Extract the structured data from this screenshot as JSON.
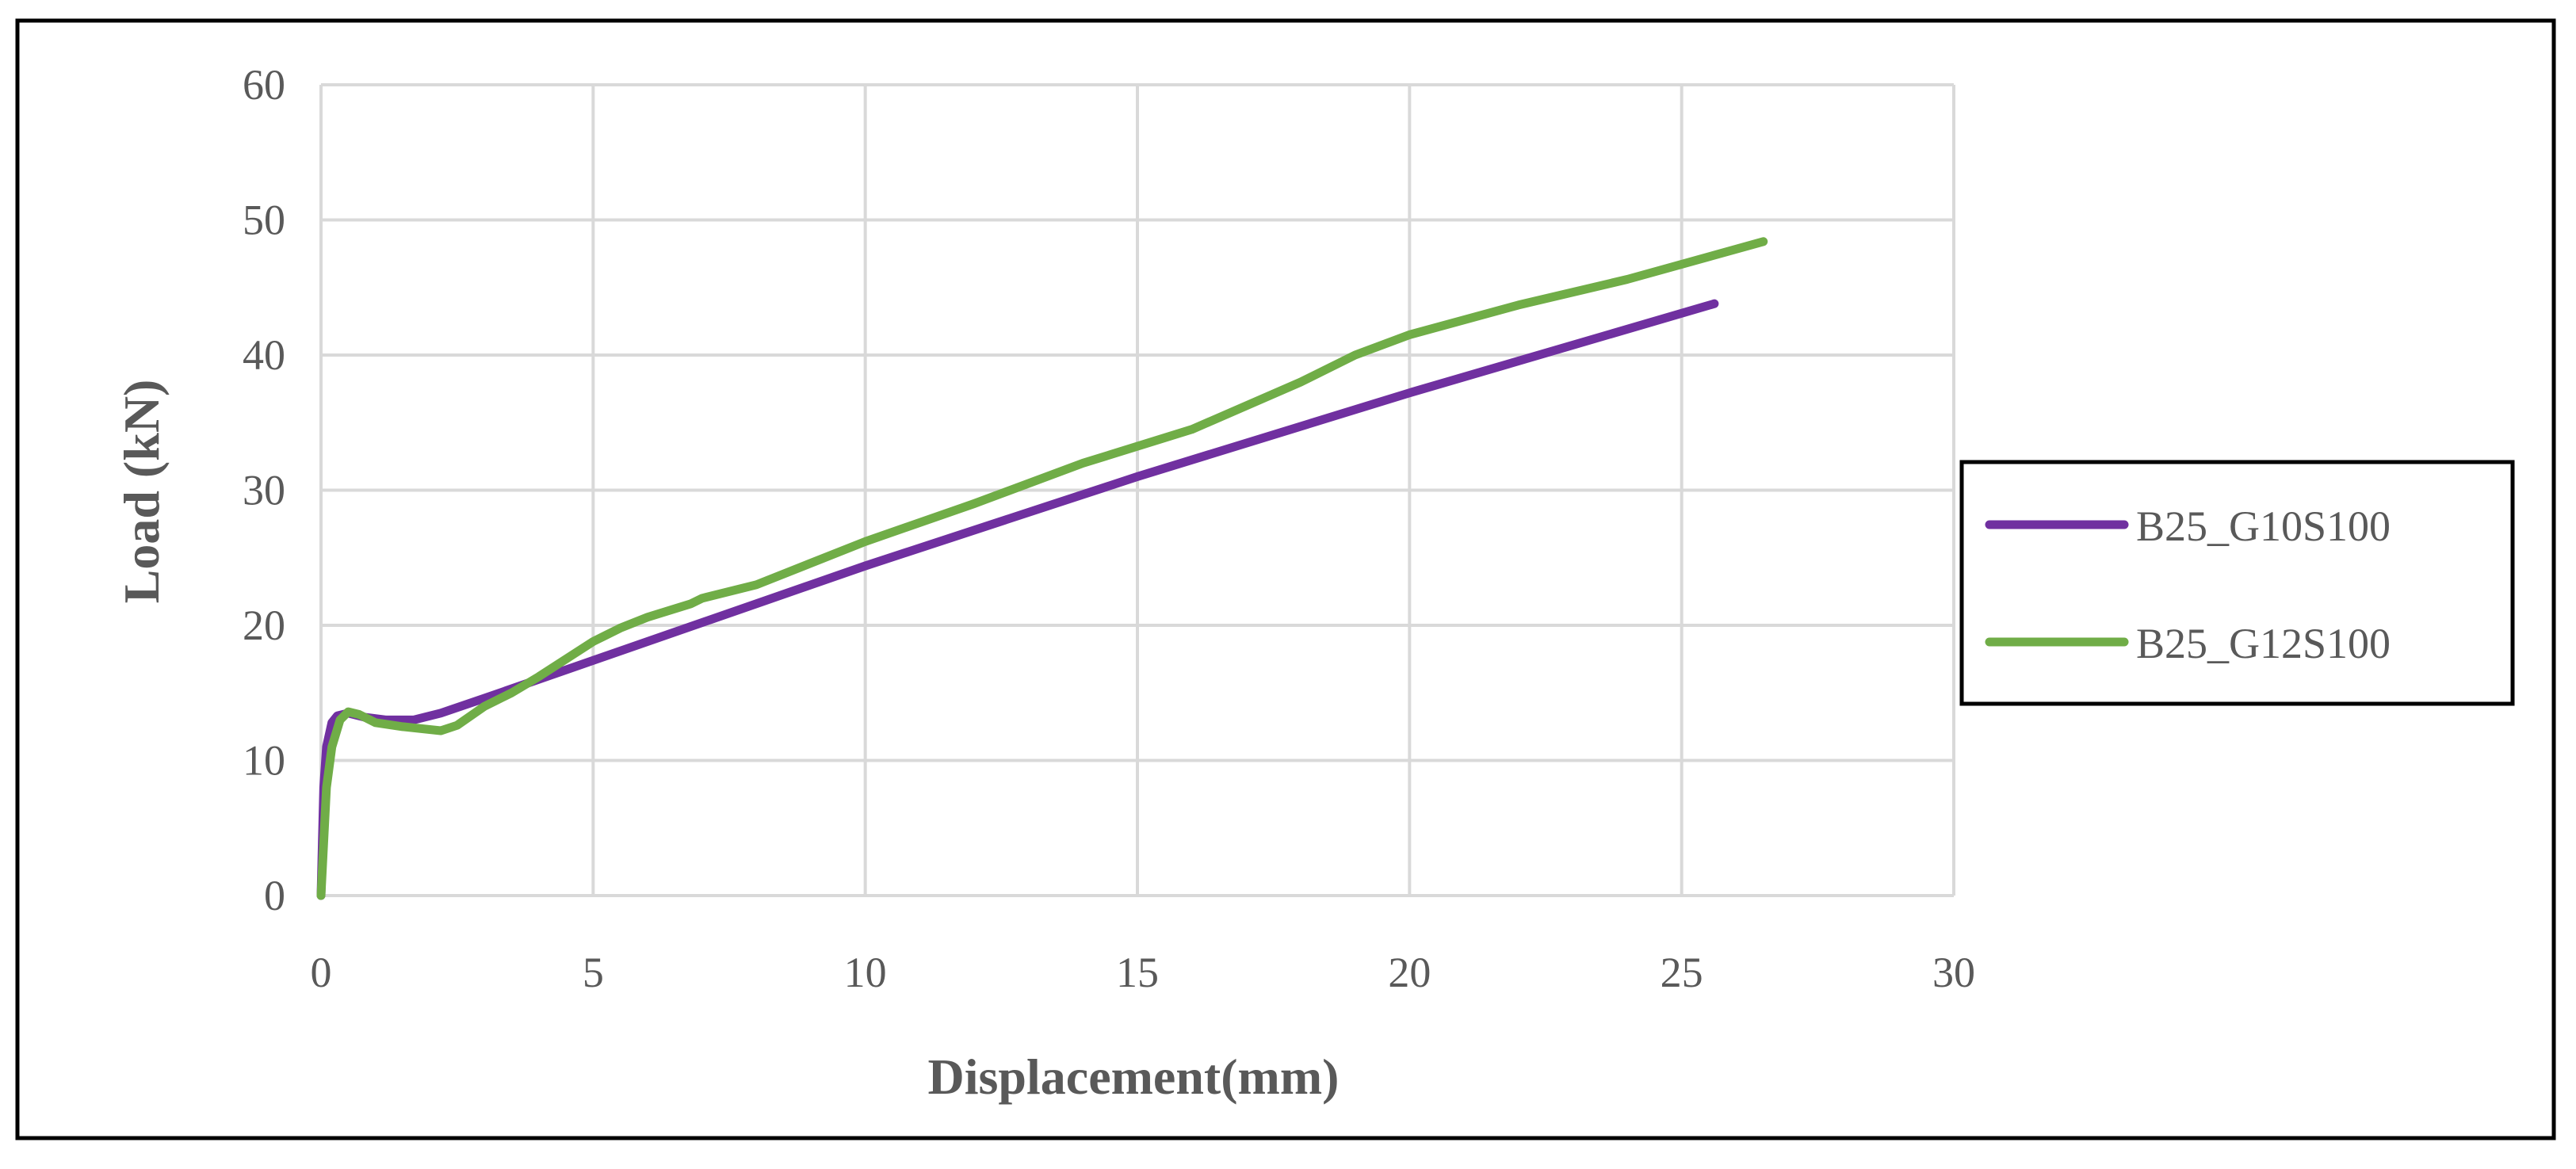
{
  "chart_data": {
    "type": "line",
    "title": "",
    "xlabel": "Displacement(mm)",
    "ylabel": "Load (kN)",
    "xlim": [
      0,
      30
    ],
    "ylim": [
      0,
      60
    ],
    "xticks": [
      0,
      5,
      10,
      15,
      20,
      25,
      30
    ],
    "yticks": [
      0,
      10,
      20,
      30,
      40,
      50,
      60
    ],
    "grid": true,
    "legend_position": "right",
    "series": [
      {
        "name": "B25_G10S100",
        "color": "#7030a0",
        "x": [
          0,
          0.05,
          0.1,
          0.2,
          0.3,
          0.5,
          0.8,
          1.2,
          1.7,
          2.2,
          3,
          4,
          5,
          7,
          10,
          15,
          20,
          25.6
        ],
        "y": [
          0,
          8,
          11,
          12.8,
          13.3,
          13.5,
          13.2,
          13.0,
          13.0,
          13.5,
          14.6,
          16.0,
          17.4,
          20.2,
          24.4,
          31.0,
          37.2,
          43.8
        ]
      },
      {
        "name": "B25_G12S100",
        "color": "#70ad47",
        "x": [
          0,
          0.1,
          0.2,
          0.35,
          0.5,
          0.7,
          1.0,
          1.5,
          2.2,
          2.5,
          3,
          3.5,
          4,
          5,
          5.5,
          6,
          6.8,
          7,
          8,
          10,
          12,
          14,
          16,
          18,
          19,
          20,
          22,
          24,
          26.5
        ],
        "y": [
          0,
          8,
          11,
          13,
          13.6,
          13.4,
          12.8,
          12.5,
          12.2,
          12.6,
          14.0,
          15.0,
          16.2,
          18.8,
          19.8,
          20.6,
          21.6,
          22.0,
          23.0,
          26.2,
          29.0,
          32.0,
          34.5,
          38.0,
          40.0,
          41.5,
          43.7,
          45.6,
          48.4
        ]
      }
    ]
  }
}
